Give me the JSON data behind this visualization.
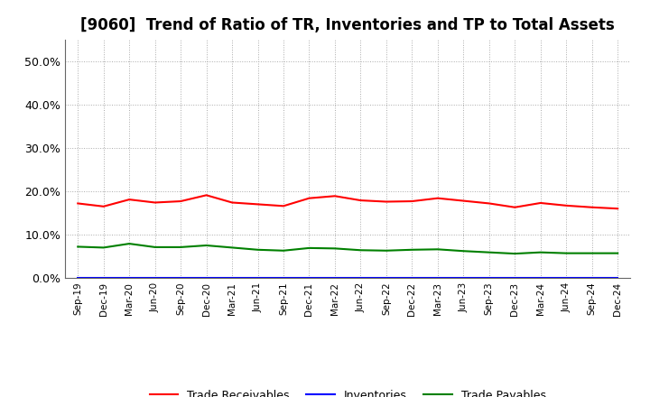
{
  "title": "[9060]  Trend of Ratio of TR, Inventories and TP to Total Assets",
  "labels": [
    "Sep-19",
    "Dec-19",
    "Mar-20",
    "Jun-20",
    "Sep-20",
    "Dec-20",
    "Mar-21",
    "Jun-21",
    "Sep-21",
    "Dec-21",
    "Mar-22",
    "Jun-22",
    "Sep-22",
    "Dec-22",
    "Mar-23",
    "Jun-23",
    "Sep-23",
    "Dec-23",
    "Mar-24",
    "Jun-24",
    "Sep-24",
    "Dec-24"
  ],
  "trade_receivables": [
    0.172,
    0.165,
    0.181,
    0.174,
    0.177,
    0.191,
    0.174,
    0.17,
    0.166,
    0.184,
    0.189,
    0.179,
    0.176,
    0.177,
    0.184,
    0.178,
    0.172,
    0.163,
    0.173,
    0.167,
    0.163,
    0.16
  ],
  "inventories": [
    0.001,
    0.001,
    0.001,
    0.001,
    0.001,
    0.001,
    0.001,
    0.001,
    0.001,
    0.001,
    0.001,
    0.001,
    0.001,
    0.001,
    0.001,
    0.001,
    0.001,
    0.001,
    0.001,
    0.001,
    0.001,
    0.001
  ],
  "trade_payables": [
    0.072,
    0.07,
    0.079,
    0.071,
    0.071,
    0.075,
    0.07,
    0.065,
    0.063,
    0.069,
    0.068,
    0.064,
    0.063,
    0.065,
    0.066,
    0.062,
    0.059,
    0.056,
    0.059,
    0.057,
    0.057,
    0.057
  ],
  "tr_color": "#ff0000",
  "inv_color": "#0000ff",
  "tp_color": "#008000",
  "ylim_min": 0.0,
  "ylim_max": 0.55,
  "ytick_values": [
    0.0,
    0.1,
    0.2,
    0.3,
    0.4,
    0.5
  ],
  "ytick_labels": [
    "0.0%",
    "10.0%",
    "20.0%",
    "30.0%",
    "40.0%",
    "50.0%"
  ],
  "background_color": "#ffffff",
  "plot_bg_color": "#ffffff",
  "grid_color": "#aaaaaa",
  "title_fontsize": 12,
  "legend_labels": [
    "Trade Receivables",
    "Inventories",
    "Trade Payables"
  ],
  "linewidth": 1.5
}
